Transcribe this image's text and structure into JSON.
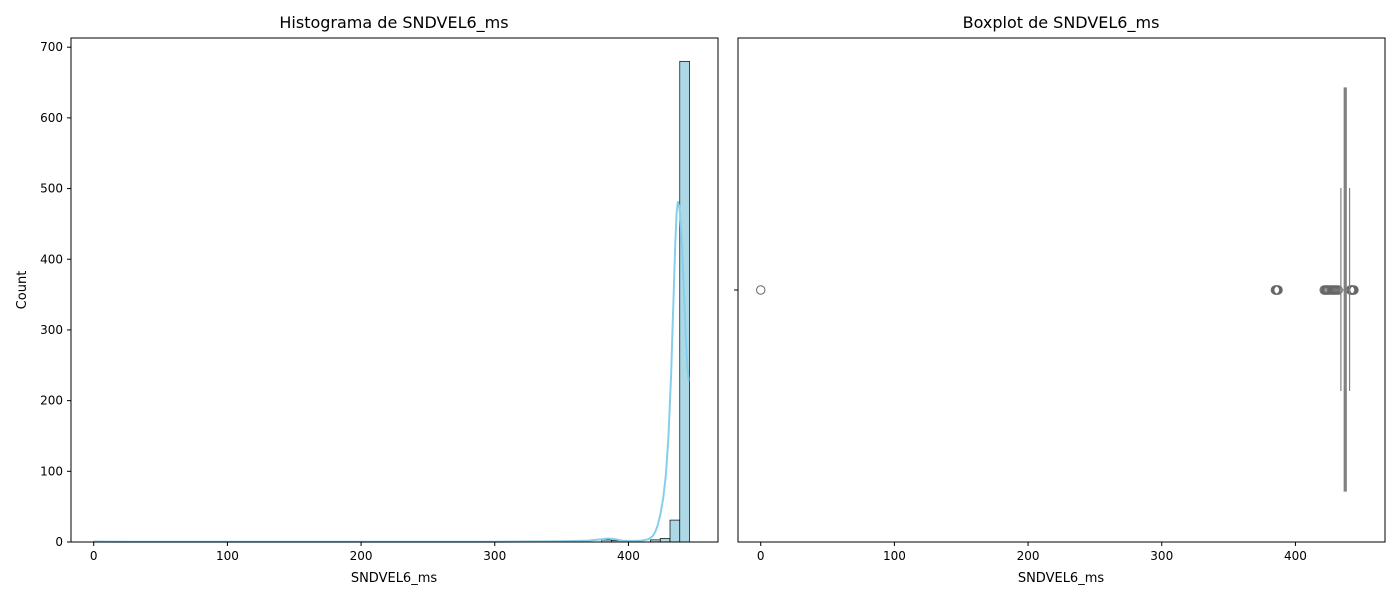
{
  "chart_data": [
    {
      "type": "bar",
      "title": "Histograma de SNDVEL6_ms",
      "xlabel": "SNDVEL6_ms",
      "ylabel": "Count",
      "xlim": [
        -17,
        467
      ],
      "ylim": [
        0,
        713
      ],
      "xticks": [
        "0",
        "100",
        "200",
        "300",
        "400"
      ],
      "yticks": [
        "0",
        "100",
        "200",
        "300",
        "400",
        "500",
        "600",
        "700"
      ],
      "xtick_values": [
        0,
        100,
        200,
        300,
        400
      ],
      "ytick_values": [
        0,
        100,
        200,
        300,
        400,
        500,
        600,
        700
      ],
      "bar_color": "#add8e6",
      "kde_color": "#87ceeb",
      "bins": [
        {
          "start": 0,
          "end": 7.3,
          "count": 1
        },
        {
          "start": 380,
          "end": 387.3,
          "count": 3
        },
        {
          "start": 387.3,
          "end": 394.6,
          "count": 2
        },
        {
          "start": 416.5,
          "end": 423.8,
          "count": 3
        },
        {
          "start": 423.8,
          "end": 431.1,
          "count": 5
        },
        {
          "start": 431.1,
          "end": 438.4,
          "count": 31
        },
        {
          "start": 438.4,
          "end": 445.7,
          "count": 680
        }
      ],
      "kde": {
        "x": [
          0,
          50,
          100,
          150,
          200,
          250,
          300,
          350,
          370,
          380,
          385,
          390,
          395,
          400,
          405,
          410,
          415,
          418,
          420,
          422,
          424,
          426,
          428,
          430,
          432,
          433,
          434,
          435,
          436,
          437,
          438,
          439,
          440,
          441,
          442,
          443,
          444,
          445
        ],
        "y": [
          0.5,
          0.3,
          0.3,
          0.3,
          0.3,
          0.3,
          0.4,
          1,
          2,
          4,
          5,
          4,
          2,
          1.5,
          1.5,
          2,
          4,
          8,
          14,
          24,
          40,
          62,
          95,
          150,
          240,
          300,
          360,
          420,
          465,
          482,
          475,
          455,
          420,
          380,
          330,
          285,
          250,
          228
        ]
      }
    },
    {
      "type": "box",
      "title": "Boxplot de SNDVEL6_ms",
      "xlabel": "SNDVEL6_ms",
      "ylabel": "",
      "xlim": [
        -17,
        467
      ],
      "xticks": [
        "0",
        "100",
        "200",
        "300",
        "400"
      ],
      "xtick_values": [
        0,
        100,
        200,
        300,
        400
      ],
      "box_color": "#808080",
      "box_face": "#bc8f8f",
      "q1": 436.5,
      "median": 437.2,
      "q3": 438.0,
      "whisker_low": 434.0,
      "whisker_high": 440.5,
      "outliers": [
        0,
        385,
        385.6,
        386,
        386.5,
        387,
        421.5,
        422.3,
        423,
        423.6,
        424.2,
        425,
        426,
        427,
        427.8,
        428.6,
        429.3,
        430,
        431,
        432,
        441.2,
        441.7,
        442.2,
        442.7,
        443.2,
        443.8
      ]
    }
  ]
}
